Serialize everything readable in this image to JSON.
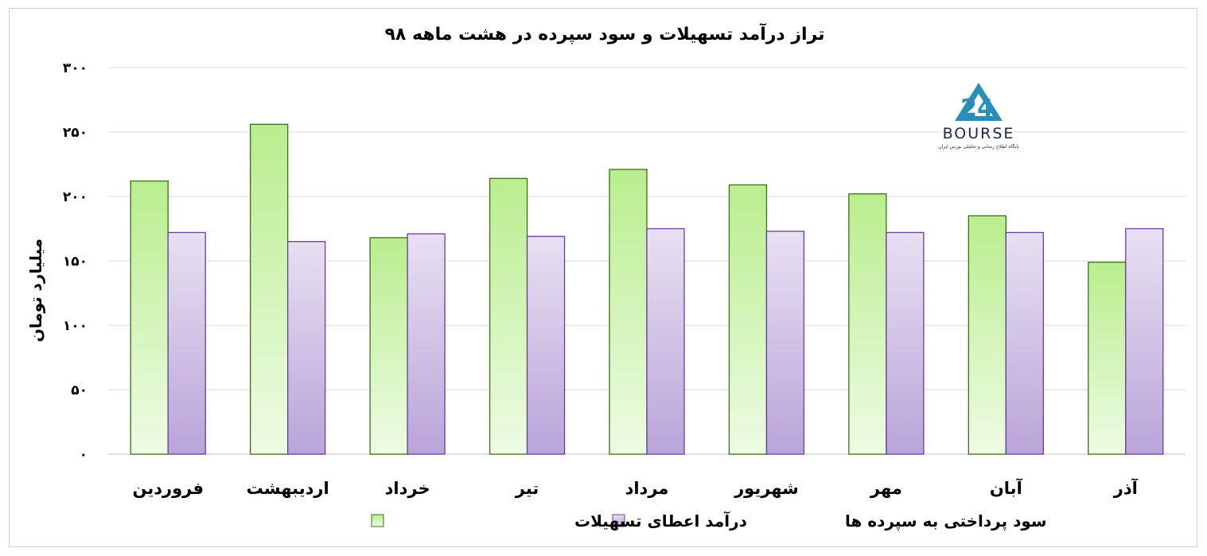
{
  "chart_data": {
    "type": "bar",
    "title": "تراز درآمد تسهیلات و سود سپرده در هشت ماهه ۹۸",
    "xlabel": "",
    "ylabel": "میلیارد تومان",
    "ylim": [
      0,
      300
    ],
    "yticks": [
      0,
      50,
      100,
      150,
      200,
      250,
      300
    ],
    "ytick_labels": [
      "۰",
      "۵۰",
      "۱۰۰",
      "۱۵۰",
      "۲۰۰",
      "۲۵۰",
      "۳۰۰"
    ],
    "categories": [
      "فروردین",
      "اردیبهشت",
      "خرداد",
      "تیر",
      "مرداد",
      "شهریور",
      "مهر",
      "آبان",
      "آذر"
    ],
    "series": [
      {
        "name": "درآمد اعطای تسهیلات",
        "values": [
          212,
          256,
          168,
          214,
          221,
          209,
          202,
          185,
          149
        ],
        "color": "#a8e27a",
        "edge": "#3c6e1a"
      },
      {
        "name": "سود پرداختی به سپرده ها",
        "values": [
          172,
          165,
          171,
          169,
          175,
          173,
          172,
          172,
          175
        ],
        "color": "#c8b6e2",
        "edge": "#6a3d9a"
      }
    ],
    "grid": true,
    "legend_position": "bottom"
  },
  "logo": {
    "brand": "BOURSE",
    "tagline": "پایگاه اطلاع رسانی و تحلیلی بورس ایران"
  }
}
